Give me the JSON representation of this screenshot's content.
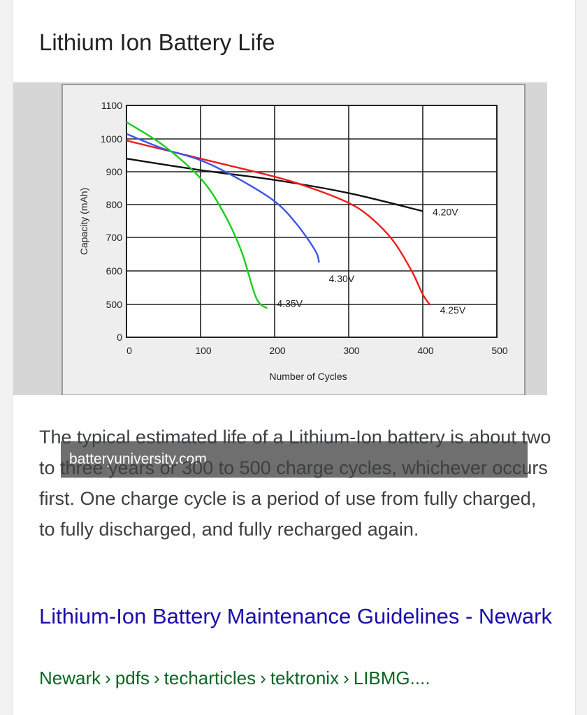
{
  "title": "Lithium Ion Battery Life",
  "image": {
    "source": "batteryuniversity.com"
  },
  "chart_data": {
    "type": "line",
    "title": "",
    "xlabel": "Number of Cycles",
    "ylabel": "Capacity (mAh)",
    "xlim": [
      0,
      500
    ],
    "ylim": [
      0,
      1100
    ],
    "x_ticks": [
      "0",
      "100",
      "200",
      "300",
      "400",
      "500"
    ],
    "y_ticks": [
      "0",
      "500",
      "600",
      "700",
      "800",
      "900",
      "1000",
      "1100"
    ],
    "grid": true,
    "series": [
      {
        "name": "4.20V",
        "color": "#111111",
        "points": [
          [
            0,
            940
          ],
          [
            100,
            905
          ],
          [
            200,
            875
          ],
          [
            300,
            835
          ],
          [
            400,
            780
          ]
        ]
      },
      {
        "name": "4.25V",
        "color": "#ee1c1c",
        "points": [
          [
            0,
            995
          ],
          [
            100,
            940
          ],
          [
            200,
            885
          ],
          [
            250,
            850
          ],
          [
            300,
            805
          ],
          [
            330,
            760
          ],
          [
            360,
            690
          ],
          [
            385,
            600
          ],
          [
            400,
            530
          ],
          [
            410,
            490
          ]
        ]
      },
      {
        "name": "4.30V",
        "color": "#3a55e8",
        "points": [
          [
            0,
            1015
          ],
          [
            50,
            970
          ],
          [
            100,
            935
          ],
          [
            150,
            880
          ],
          [
            200,
            810
          ],
          [
            230,
            740
          ],
          [
            255,
            660
          ],
          [
            260,
            625
          ]
        ]
      },
      {
        "name": "4.35V",
        "color": "#18d018",
        "points": [
          [
            0,
            1050
          ],
          [
            50,
            980
          ],
          [
            100,
            880
          ],
          [
            130,
            780
          ],
          [
            155,
            660
          ],
          [
            175,
            520
          ],
          [
            190,
            440
          ]
        ]
      }
    ]
  },
  "snippet": "The typical estimated life of a Lithium-Ion battery is about two to three years or 300 to 500 charge cycles, whichever occurs first. One charge cycle is a period of use from fully charged, to fully discharged, and fully recharged again.",
  "result": {
    "title": "Lithium-Ion Battery Maintenance Guidelines - Newark",
    "breadcrumb": [
      "Newark",
      "pdfs",
      "techarticles",
      "tektronix",
      "LIBMG...."
    ],
    "separator": "›"
  }
}
